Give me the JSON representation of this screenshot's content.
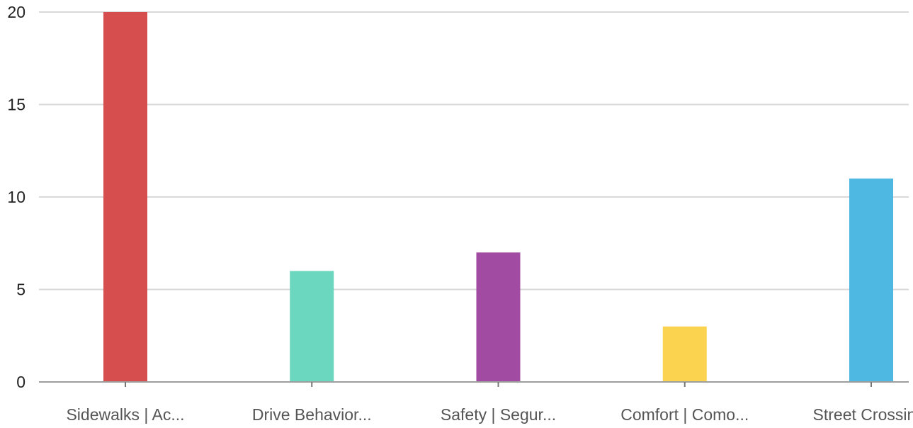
{
  "chart_data": {
    "type": "bar",
    "categories": [
      "Sidewalks | Ac...",
      "Drive Behavior...",
      "Safety | Segur...",
      "Comfort | Como...",
      "Street Crossin..."
    ],
    "values": [
      20,
      6,
      7,
      3,
      11
    ],
    "colors": [
      "#d64e4e",
      "#6ad7be",
      "#a14ba2",
      "#fcd34f",
      "#4fb8e2"
    ],
    "title": "",
    "xlabel": "",
    "ylabel": "",
    "ylim": [
      0,
      20
    ],
    "yticks": [
      0,
      5,
      10,
      15,
      20
    ],
    "grid": true,
    "legend": "none"
  }
}
